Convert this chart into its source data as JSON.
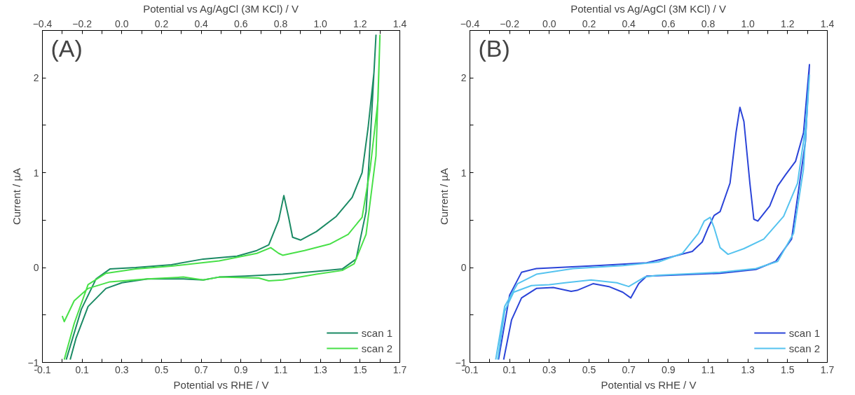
{
  "chart_data": [
    {
      "type": "line",
      "xlabel": "Potential vs RHE / V",
      "x2label": "Potential vs Ag/AgCl (3M KCl) / V",
      "ylabel": "Current / µA",
      "annotations": [
        "(A)"
      ],
      "xlim": [
        -0.1,
        1.7
      ],
      "xticks": [
        -0.1,
        {
          "value": 0.0,
          "label": null
        },
        0.1,
        {
          "value": 0.2,
          "label": null
        },
        0.3,
        {
          "value": 0.4,
          "label": null
        },
        0.5,
        {
          "value": 0.6,
          "label": null
        },
        0.7,
        {
          "value": 0.8,
          "label": null
        },
        0.9,
        {
          "value": 1.0,
          "label": null
        },
        1.1,
        {
          "value": 1.2,
          "label": null
        },
        1.3,
        {
          "value": 1.4,
          "label": null
        },
        1.5,
        {
          "value": 1.6,
          "label": null
        },
        1.7
      ],
      "x2lim": [
        -0.4,
        1.4
      ],
      "x2ticks": [
        {
          "value": -0.4,
          "label": "−0.4"
        },
        {
          "value": -0.3,
          "label": null
        },
        {
          "value": -0.2,
          "label": "−0.2"
        },
        {
          "value": -0.1,
          "label": null
        },
        {
          "value": 0.0,
          "label": "0.0"
        },
        {
          "value": 0.1,
          "label": null
        },
        {
          "value": 0.2,
          "label": "0.2"
        },
        {
          "value": 0.3,
          "label": null
        },
        {
          "value": 0.4,
          "label": "0.4"
        },
        {
          "value": 0.5,
          "label": null
        },
        {
          "value": 0.6,
          "label": "0.6"
        },
        {
          "value": 0.7,
          "label": null
        },
        {
          "value": 0.8,
          "label": "0.8"
        },
        {
          "value": 0.9,
          "label": null
        },
        {
          "value": 1.0,
          "label": "1.0"
        },
        {
          "value": 1.1,
          "label": null
        },
        {
          "value": 1.2,
          "label": "1.2"
        },
        {
          "value": 1.3,
          "label": null
        },
        {
          "value": 1.4,
          "label": "1.4"
        }
      ],
      "ylim": [
        -1,
        2.5
      ],
      "yticks": [
        {
          "value": -1,
          "label": "−1"
        },
        {
          "value": -0.5,
          "label": null
        },
        0,
        {
          "value": 0.5,
          "label": null
        },
        1,
        {
          "value": 1.5,
          "label": null
        },
        2
      ],
      "grid": false,
      "legend": "bottom right",
      "series": [
        {
          "name": "scan 1",
          "color": "#1b8a64",
          "x": [
            0.02,
            0.096,
            0.17,
            0.24,
            0.37,
            0.55,
            0.71,
            0.88,
            0.98,
            1.04,
            1.09,
            1.116,
            1.14,
            1.16,
            1.2,
            1.28,
            1.38,
            1.46,
            1.51,
            1.54,
            1.57,
            1.58,
            1.58,
            1.55,
            1.53,
            1.48,
            1.41,
            1.28,
            1.11,
            0.92,
            0.79,
            0.71,
            0.61,
            0.43,
            0.3,
            0.22,
            0.13,
            0.07,
            0.04
          ],
          "values": [
            -0.97,
            -0.44,
            -0.12,
            -0.015,
            0.0,
            0.03,
            0.09,
            0.12,
            0.18,
            0.24,
            0.5,
            0.76,
            0.53,
            0.32,
            0.29,
            0.38,
            0.54,
            0.74,
            1.0,
            1.47,
            2.06,
            2.45,
            2.45,
            1.3,
            0.59,
            0.09,
            -0.015,
            -0.04,
            -0.07,
            -0.09,
            -0.1,
            -0.13,
            -0.12,
            -0.12,
            -0.16,
            -0.22,
            -0.41,
            -0.74,
            -0.97
          ]
        },
        {
          "name": "scan 2",
          "color": "#48e048",
          "x": [
            0.01,
            0.06,
            0.13,
            0.22,
            0.37,
            0.55,
            0.79,
            0.98,
            1.05,
            1.09,
            1.11,
            1.22,
            1.35,
            1.44,
            1.51,
            1.55,
            1.59,
            1.6,
            1.6,
            1.58,
            1.53,
            1.47,
            1.41,
            1.28,
            1.11,
            1.04,
            0.99,
            0.79,
            0.71,
            0.61,
            0.43,
            0.24,
            0.13,
            0.06,
            0.01,
            0.0
          ],
          "values": [
            -0.97,
            -0.59,
            -0.18,
            -0.06,
            -0.015,
            0.015,
            0.07,
            0.15,
            0.21,
            0.15,
            0.13,
            0.18,
            0.25,
            0.35,
            0.53,
            1.03,
            1.76,
            2.45,
            2.45,
            1.18,
            0.35,
            0.04,
            -0.03,
            -0.07,
            -0.13,
            -0.14,
            -0.11,
            -0.1,
            -0.13,
            -0.1,
            -0.12,
            -0.15,
            -0.22,
            -0.35,
            -0.57,
            -0.51
          ]
        }
      ]
    },
    {
      "type": "line",
      "xlabel": "Potential vs RHE / V",
      "x2label": "Potential vs Ag/AgCl (3M KCl) / V",
      "ylabel": "Current / µA",
      "annotations": [
        "(B)"
      ],
      "xlim": [
        -0.1,
        1.7
      ],
      "xticks": [
        -0.1,
        {
          "value": 0.0,
          "label": null
        },
        0.1,
        {
          "value": 0.2,
          "label": null
        },
        0.3,
        {
          "value": 0.4,
          "label": null
        },
        0.5,
        {
          "value": 0.6,
          "label": null
        },
        0.7,
        {
          "value": 0.8,
          "label": null
        },
        0.9,
        {
          "value": 1.0,
          "label": null
        },
        1.1,
        {
          "value": 1.2,
          "label": null
        },
        1.3,
        {
          "value": 1.4,
          "label": null
        },
        1.5,
        {
          "value": 1.6,
          "label": null
        },
        1.7
      ],
      "x2lim": [
        -0.4,
        1.4
      ],
      "x2ticks": [
        {
          "value": -0.4,
          "label": "−0.4"
        },
        {
          "value": -0.3,
          "label": null
        },
        {
          "value": -0.2,
          "label": "−0.2"
        },
        {
          "value": -0.1,
          "label": null
        },
        {
          "value": 0.0,
          "label": "0.0"
        },
        {
          "value": 0.1,
          "label": null
        },
        {
          "value": 0.2,
          "label": "0.2"
        },
        {
          "value": 0.3,
          "label": null
        },
        {
          "value": 0.4,
          "label": "0.4"
        },
        {
          "value": 0.5,
          "label": null
        },
        {
          "value": 0.6,
          "label": "0.6"
        },
        {
          "value": 0.7,
          "label": null
        },
        {
          "value": 0.8,
          "label": "0.8"
        },
        {
          "value": 0.9,
          "label": null
        },
        {
          "value": 1.0,
          "label": "1.0"
        },
        {
          "value": 1.1,
          "label": null
        },
        {
          "value": 1.2,
          "label": "1.2"
        },
        {
          "value": 1.3,
          "label": null
        },
        {
          "value": 1.4,
          "label": "1.4"
        }
      ],
      "ylim": [
        -1,
        2.5
      ],
      "yticks": [
        {
          "value": -1,
          "label": "−1"
        },
        {
          "value": -0.5,
          "label": null
        },
        0,
        {
          "value": 0.5,
          "label": null
        },
        1,
        {
          "value": 1.5,
          "label": null
        },
        2
      ],
      "grid": false,
      "legend": "bottom right",
      "series": [
        {
          "name": "scan 1",
          "color": "#2b44d8",
          "x": [
            0.044,
            0.1,
            0.16,
            0.235,
            0.54,
            0.79,
            0.91,
            1.02,
            1.07,
            1.1,
            1.13,
            1.16,
            1.21,
            1.24,
            1.26,
            1.28,
            1.31,
            1.33,
            1.35,
            1.41,
            1.45,
            1.49,
            1.54,
            1.58,
            1.61,
            1.59,
            1.55,
            1.52,
            1.44,
            1.34,
            1.16,
            0.91,
            0.79,
            0.75,
            0.71,
            0.67,
            0.6,
            0.52,
            0.44,
            0.41,
            0.32,
            0.235,
            0.16,
            0.11,
            0.07
          ],
          "values": [
            -0.97,
            -0.29,
            -0.05,
            -0.01,
            0.02,
            0.05,
            0.11,
            0.17,
            0.27,
            0.42,
            0.55,
            0.59,
            0.89,
            1.42,
            1.69,
            1.54,
            0.89,
            0.51,
            0.49,
            0.65,
            0.86,
            0.98,
            1.12,
            1.42,
            2.14,
            1.33,
            0.74,
            0.3,
            0.065,
            -0.02,
            -0.06,
            -0.08,
            -0.09,
            -0.17,
            -0.32,
            -0.26,
            -0.2,
            -0.17,
            -0.24,
            -0.25,
            -0.21,
            -0.22,
            -0.32,
            -0.55,
            -0.97
          ]
        },
        {
          "name": "scan 2",
          "color": "#55c3ef",
          "x": [
            0.03,
            0.075,
            0.14,
            0.235,
            0.42,
            0.67,
            0.85,
            0.97,
            1.05,
            1.08,
            1.11,
            1.13,
            1.16,
            1.2,
            1.28,
            1.38,
            1.48,
            1.55,
            1.59,
            1.61,
            1.58,
            1.53,
            1.45,
            1.34,
            1.16,
            0.85,
            0.78,
            0.7,
            0.64,
            0.51,
            0.38,
            0.3,
            0.21,
            0.12,
            0.075,
            0.04
          ],
          "values": [
            -0.97,
            -0.41,
            -0.17,
            -0.07,
            -0.01,
            0.02,
            0.06,
            0.15,
            0.36,
            0.49,
            0.53,
            0.42,
            0.21,
            0.14,
            0.2,
            0.3,
            0.54,
            0.89,
            1.48,
            2.03,
            1.04,
            0.36,
            0.065,
            -0.01,
            -0.05,
            -0.08,
            -0.1,
            -0.2,
            -0.16,
            -0.13,
            -0.16,
            -0.18,
            -0.19,
            -0.26,
            -0.46,
            -0.97
          ]
        }
      ]
    }
  ]
}
